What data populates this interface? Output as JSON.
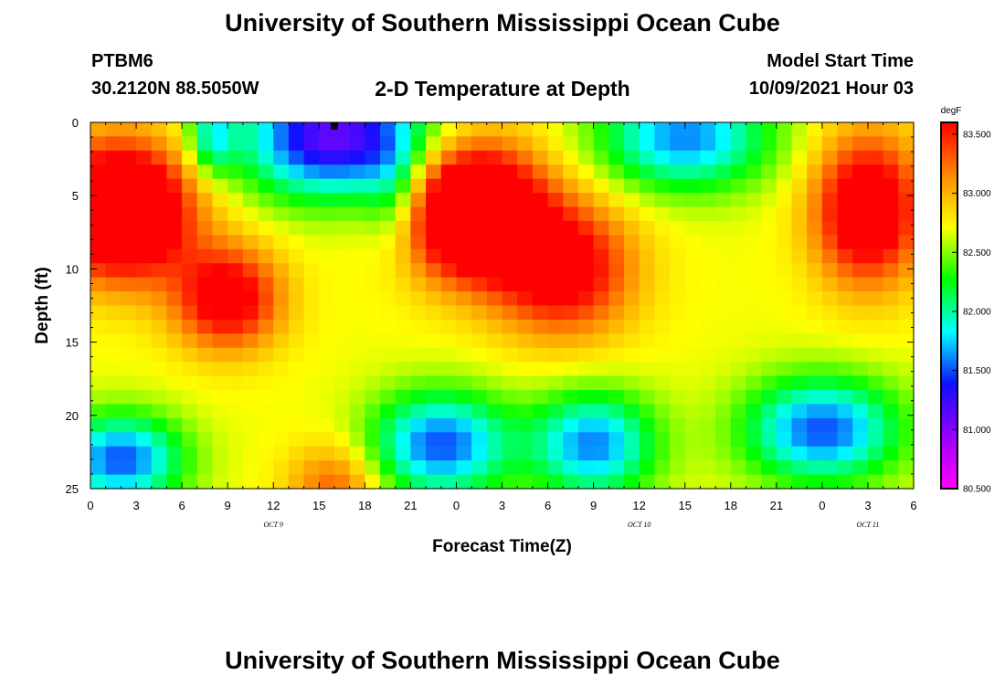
{
  "header": {
    "title": "University of Southern Mississippi Ocean Cube",
    "station": "PTBM6",
    "coords": "30.2120N  88.5050W",
    "plot_title": "2-D Temperature at Depth",
    "start_label": "Model Start Time",
    "start_value": "10/09/2021 Hour 03"
  },
  "footer": {
    "title": "University of Southern Mississippi Ocean Cube"
  },
  "chart_data": {
    "type": "heatmap",
    "title": "2-D Temperature at Depth",
    "xlabel": "Forecast Time(Z)",
    "ylabel": "Depth (ft)",
    "colorbar_label": "degF",
    "xlim": [
      0,
      54
    ],
    "ylim": [
      0,
      25
    ],
    "y_inverted": true,
    "x_ticks": [
      0,
      3,
      6,
      9,
      12,
      15,
      18,
      21,
      24,
      27,
      30,
      33,
      36,
      39,
      42,
      45,
      48,
      51,
      54
    ],
    "x_tick_labels": [
      "0",
      "3",
      "6",
      "9",
      "12",
      "15",
      "18",
      "21",
      "0",
      "3",
      "6",
      "9",
      "12",
      "15",
      "18",
      "21",
      "0",
      "3",
      "6"
    ],
    "y_ticks": [
      0,
      5,
      10,
      15,
      20,
      25
    ],
    "y_tick_labels": [
      "0",
      "5",
      "10",
      "15",
      "20",
      "25"
    ],
    "day_labels": [
      {
        "x": 12,
        "text": "OCT 9"
      },
      {
        "x": 36,
        "text": "OCT 10"
      },
      {
        "x": 51,
        "text": "OCT 11"
      }
    ],
    "colorbar": {
      "min": 80.5,
      "max": 83.6,
      "ticks": [
        80.5,
        81.0,
        81.5,
        82.0,
        82.5,
        83.0,
        83.5
      ],
      "tick_labels": [
        "80.500",
        "81.000",
        "81.500",
        "82.000",
        "82.500",
        "83.000",
        "83.500"
      ],
      "colors": [
        "#ff00ff",
        "#9900ff",
        "#1010ff",
        "#00ffff",
        "#00ff00",
        "#ffff00",
        "#ff8800",
        "#ff0000"
      ]
    },
    "marker": {
      "x": 16,
      "y": 0
    },
    "features": [
      {
        "x": 2,
        "y": 6,
        "sx": 4.5,
        "sy": 4.5,
        "amp": 1.8
      },
      {
        "x": 9,
        "y": 12,
        "sx": 3.5,
        "sy": 3.5,
        "amp": 1.1
      },
      {
        "x": 25,
        "y": 6,
        "sx": 4.5,
        "sy": 4.5,
        "amp": 1.8
      },
      {
        "x": 31,
        "y": 10,
        "sx": 4.5,
        "sy": 4.5,
        "amp": 1.1
      },
      {
        "x": 51,
        "y": 6,
        "sx": 3.5,
        "sy": 5.0,
        "amp": 1.3
      },
      {
        "x": 16,
        "y": 25,
        "sx": 3.0,
        "sy": 3.0,
        "amp": 0.6
      },
      {
        "x": 16,
        "y": 1,
        "sx": 6.0,
        "sy": 4.0,
        "amp": -1.6
      },
      {
        "x": 39,
        "y": 1,
        "sx": 5.5,
        "sy": 3.5,
        "amp": -1.1
      },
      {
        "x": 2,
        "y": 23,
        "sx": 4.0,
        "sy": 3.0,
        "amp": -1.2
      },
      {
        "x": 23,
        "y": 22,
        "sx": 4.5,
        "sy": 3.5,
        "amp": -1.2
      },
      {
        "x": 33,
        "y": 22,
        "sx": 4.0,
        "sy": 3.5,
        "amp": -1.1
      },
      {
        "x": 48,
        "y": 21,
        "sx": 5.0,
        "sy": 3.5,
        "amp": -1.2
      },
      {
        "x": 8,
        "y": 1,
        "sx": 1.5,
        "sy": 2.5,
        "amp": -0.7
      },
      {
        "x": 20,
        "y": 5,
        "sx": 2.0,
        "sy": 4.0,
        "amp": -0.5
      }
    ],
    "base_temperature": 82.7
  }
}
